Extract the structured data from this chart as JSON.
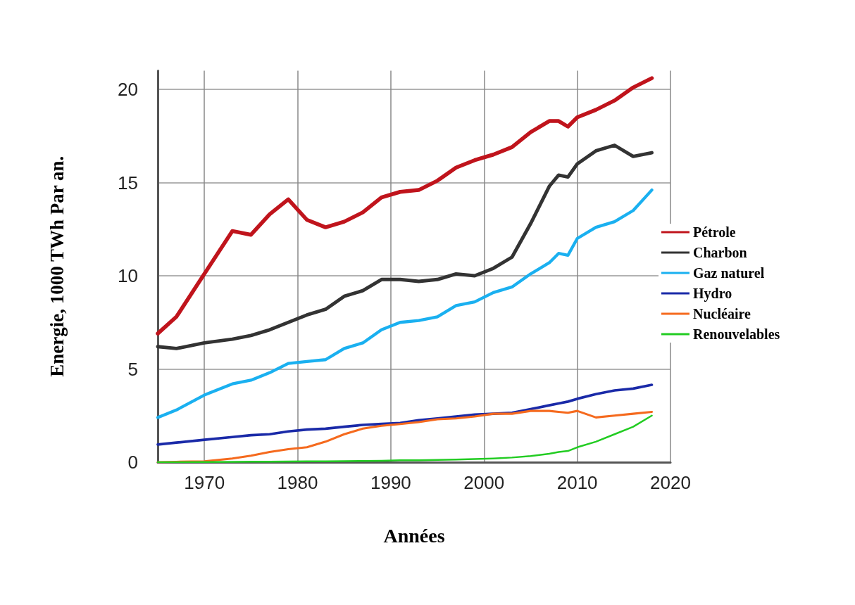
{
  "chart_data": {
    "type": "line",
    "xlabel": "Années",
    "ylabel": "Energie, 1000 TWh Par an.",
    "x": [
      1965,
      1967,
      1970,
      1973,
      1975,
      1977,
      1979,
      1981,
      1983,
      1985,
      1987,
      1989,
      1991,
      1993,
      1995,
      1997,
      1999,
      2001,
      2003,
      2005,
      2007,
      2008,
      2009,
      2010,
      2012,
      2014,
      2016,
      2018
    ],
    "series": [
      {
        "name": "Pétrole",
        "color": "#c0141c",
        "values": [
          6.9,
          7.8,
          10.1,
          12.4,
          12.2,
          13.3,
          14.1,
          13.0,
          12.6,
          12.9,
          13.4,
          14.2,
          14.5,
          14.6,
          15.1,
          15.8,
          16.2,
          16.5,
          16.9,
          17.7,
          18.3,
          18.3,
          18.0,
          18.5,
          18.9,
          19.4,
          20.1,
          20.6
        ]
      },
      {
        "name": "Charbon",
        "color": "#333333",
        "values": [
          6.2,
          6.1,
          6.4,
          6.6,
          6.8,
          7.1,
          7.5,
          7.9,
          8.2,
          8.9,
          9.2,
          9.8,
          9.8,
          9.7,
          9.8,
          10.1,
          10.0,
          10.4,
          11.0,
          12.8,
          14.8,
          15.4,
          15.3,
          16.0,
          16.7,
          17.0,
          16.4,
          16.6
        ]
      },
      {
        "name": "Gaz naturel",
        "color": "#1ab0f0",
        "values": [
          2.4,
          2.8,
          3.6,
          4.2,
          4.4,
          4.8,
          5.3,
          5.4,
          5.5,
          6.1,
          6.4,
          7.1,
          7.5,
          7.6,
          7.8,
          8.4,
          8.6,
          9.1,
          9.4,
          10.1,
          10.7,
          11.2,
          11.1,
          12.0,
          12.6,
          12.9,
          13.5,
          14.6
        ]
      },
      {
        "name": "Hydro",
        "color": "#1a2aa8",
        "values": [
          0.95,
          1.05,
          1.2,
          1.35,
          1.45,
          1.5,
          1.65,
          1.75,
          1.8,
          1.9,
          2.0,
          2.05,
          2.1,
          2.25,
          2.35,
          2.45,
          2.55,
          2.6,
          2.65,
          2.85,
          3.05,
          3.15,
          3.25,
          3.4,
          3.65,
          3.85,
          3.95,
          4.15
        ]
      },
      {
        "name": "Nucléaire",
        "color": "#f56a1e",
        "values": [
          0,
          0.02,
          0.05,
          0.2,
          0.35,
          0.55,
          0.7,
          0.8,
          1.1,
          1.5,
          1.8,
          1.95,
          2.05,
          2.15,
          2.3,
          2.35,
          2.45,
          2.6,
          2.6,
          2.75,
          2.75,
          2.7,
          2.65,
          2.75,
          2.4,
          2.5,
          2.6,
          2.7
        ]
      },
      {
        "name": "Renouvelables",
        "color": "#22cc22",
        "values": [
          0,
          0,
          0.01,
          0.02,
          0.03,
          0.03,
          0.04,
          0.05,
          0.05,
          0.06,
          0.07,
          0.08,
          0.1,
          0.1,
          0.12,
          0.14,
          0.17,
          0.2,
          0.25,
          0.33,
          0.45,
          0.55,
          0.6,
          0.8,
          1.1,
          1.5,
          1.9,
          2.5
        ]
      }
    ],
    "xlim": [
      1965,
      2020
    ],
    "xticks": [
      1970,
      1980,
      1990,
      2000,
      2010,
      2020
    ],
    "ylim": [
      0,
      21
    ],
    "yticks": [
      0,
      5,
      10,
      15,
      20
    ],
    "grid": true,
    "legend": "right",
    "marker": "none",
    "line_style": "solid"
  }
}
